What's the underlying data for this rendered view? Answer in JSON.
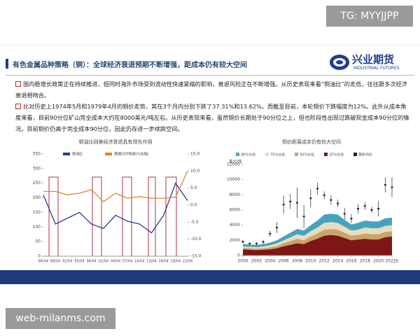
{
  "watermark_top": "TG: MYYJJPP",
  "watermark_bottom": "web-milanms.com",
  "header": {
    "title": "有色金属品种策略（铜）：全球经济衰退预期不断增强，距成本仍有较大空间",
    "logo_cn": "兴业期货",
    "logo_en": "INDUSTRIAL FUTURES"
  },
  "bullets": [
    "国内稳增长政策正在持续推进，但同时海外市场受到流动性快速紧缩的影响，衰退风险正在不断增强。从历史表现来看“铜油比”的走低，往往跟多次经济衰退相吻合。",
    "比对历史上1974年5月和1979年4月的铜价走势，其在3个月内分别下跌了37.31%和13.62%。而截至目前，本轮铜价下跌幅度为12%。此外从成本角度来看，目前90分位矿山完全成本大约在8000美元/吨左右。从历史表现来看，虽然铜价长期处于90分位之上，但也阶段性出现过跌破现金成本90分位的情况。目前铜价仍高于完全成本90分位，因此仍存进一步续跌空间。"
  ],
  "chart_data": [
    {
      "type": "line",
      "title": "铜油比同美经济衰退具有领先作用",
      "categories": [
        "86/04",
        "89/04",
        "92/04",
        "95/04",
        "98/04",
        "01/04",
        "04/04",
        "07/04",
        "10/04",
        "13/04",
        "16/04",
        "19/04",
        "22/04"
      ],
      "series": [
        {
          "name": "铜油比",
          "color": "#1f3f8f",
          "values": [
            210,
            110,
            130,
            150,
            110,
            95,
            140,
            120,
            110,
            80,
            140,
            250,
            190
          ]
        },
        {
          "name": "美国GDP增速(%右轴)",
          "color": "#d98a2c",
          "axis": "y2",
          "values": [
            4,
            4,
            3,
            3.5,
            4.5,
            1,
            3.5,
            2,
            2.5,
            2,
            2,
            2.3,
            10
          ]
        }
      ],
      "ylim": [
        0,
        350
      ],
      "yticks": [
        0,
        50,
        100,
        150,
        200,
        250,
        300,
        350
      ],
      "y2lim": [
        -15,
        15
      ],
      "y2ticks": [
        {
          "value": -15,
          "label": "-15.0"
        },
        {
          "value": -10,
          "label": "-10.0"
        },
        {
          "value": -5,
          "label": "-5.0"
        },
        {
          "value": 0,
          "label": "0.0"
        },
        {
          "value": 5,
          "label": "5.0"
        },
        {
          "value": 10,
          "label": "10.0"
        },
        {
          "value": 15,
          "label": "15.0"
        }
      ]
    },
    {
      "type": "area",
      "title": "铜价距离成本仍有较大空间",
      "y_label": "美元/吨",
      "x": [
        2000,
        2001,
        2002,
        2003,
        2004,
        2005,
        2006,
        2007,
        2008,
        2009,
        2010,
        2011,
        2012,
        2013,
        2014,
        2015,
        2016,
        2017,
        2018,
        2019,
        2020,
        2021,
        2022
      ],
      "xlim": [
        2000,
        2022
      ],
      "xticks": [
        2000,
        2002,
        2004,
        2006,
        2008,
        2010,
        2012,
        2014,
        2016,
        2018,
        2020,
        {
          "value": 2022,
          "label": "2022E"
        }
      ],
      "ylim": [
        0,
        12000
      ],
      "yticks": [
        0,
        2000,
        4000,
        6000,
        8000,
        10000,
        12000
      ],
      "series": [
        {
          "name": "90%分位",
          "color": "#46a3c0",
          "style": "area",
          "values": [
            1500,
            1450,
            1400,
            1500,
            1700,
            2000,
            2500,
            3000,
            3500,
            3300,
            4000,
            4600,
            5400,
            5500,
            5400,
            4700,
            4100,
            4300,
            4600,
            4500,
            4500,
            4900,
            5000
          ]
        },
        {
          "name": "75%分位",
          "color": "#e8dcc0",
          "style": "area",
          "values": [
            1200,
            1150,
            1100,
            1200,
            1350,
            1600,
            2000,
            2400,
            2800,
            2600,
            3200,
            3700,
            4300,
            4400,
            4300,
            3800,
            3300,
            3400,
            3700,
            3600,
            3600,
            3900,
            4000
          ]
        },
        {
          "name": "50%分位",
          "color": "#c9a56a",
          "style": "area",
          "values": [
            1000,
            950,
            900,
            950,
            1050,
            1250,
            1600,
            1900,
            2200,
            2000,
            2500,
            2900,
            3400,
            3500,
            3400,
            3000,
            2600,
            2700,
            2900,
            2800,
            2800,
            3100,
            3200
          ]
        },
        {
          "name": "25%分位",
          "color": "#7f1515",
          "style": "area",
          "values": [
            800,
            750,
            700,
            750,
            800,
            950,
            1200,
            1400,
            1600,
            1500,
            1900,
            2200,
            2600,
            2700,
            2600,
            2300,
            2000,
            2100,
            2200,
            2100,
            2100,
            2400,
            2500
          ]
        },
        {
          "name": "铜年均价",
          "color": "#222222",
          "style": "errorbar",
          "values": [
            1800,
            1580,
            1560,
            1780,
            2870,
            3680,
            6720,
            7120,
            6950,
            5150,
            7540,
            8820,
            7950,
            7320,
            6860,
            5500,
            4860,
            6170,
            6530,
            6000,
            6180,
            9310,
            9000
          ],
          "error": [
            200,
            150,
            200,
            300,
            400,
            700,
            1200,
            1000,
            2000,
            1500,
            1200,
            800,
            500,
            600,
            500,
            800,
            600,
            600,
            500,
            400,
            1000,
            1000,
            1300
          ]
        }
      ]
    }
  ]
}
